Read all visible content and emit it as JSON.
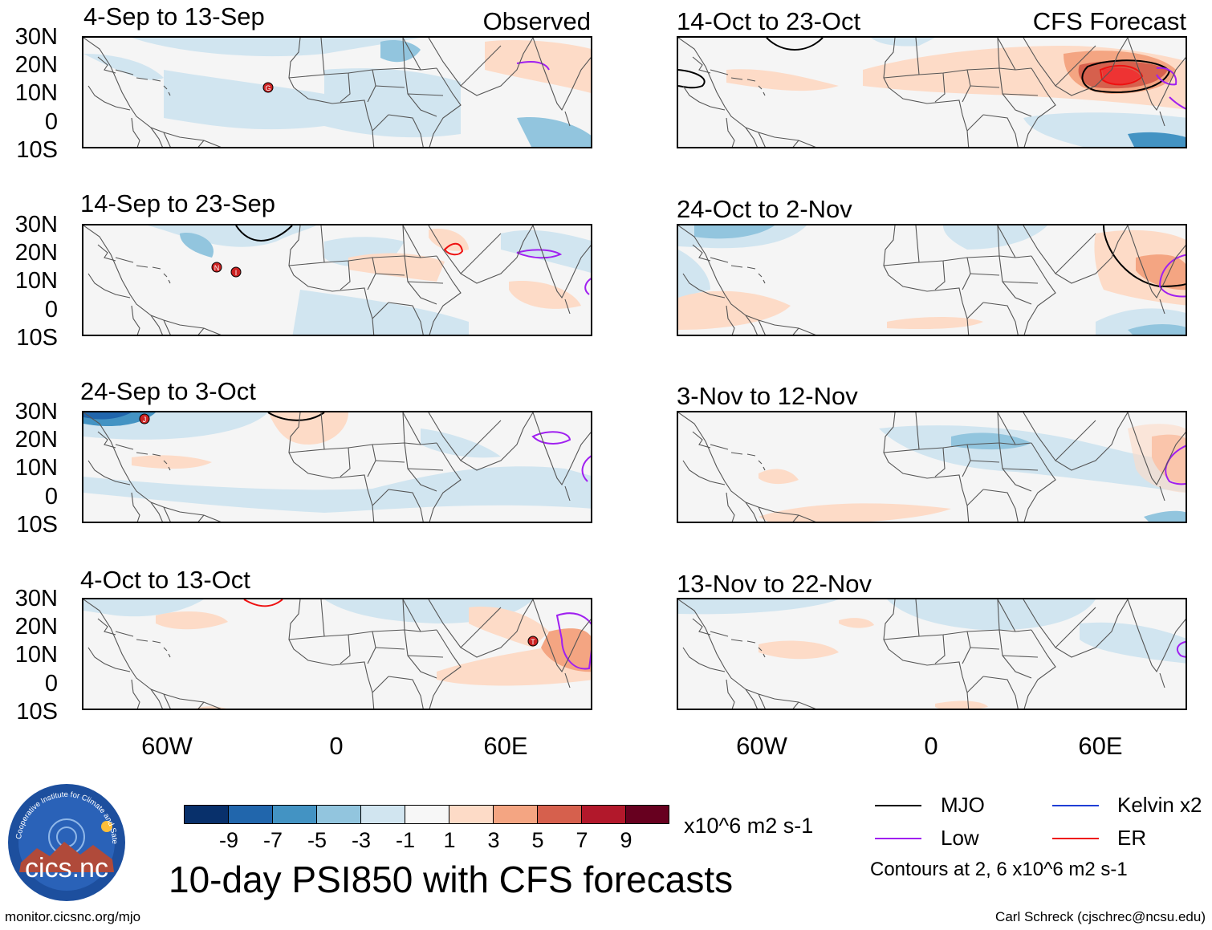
{
  "panels": {
    "obs": [
      {
        "title": "4-Sep to 13-Sep",
        "label": "Observed"
      },
      {
        "title": "14-Sep to 23-Sep",
        "label": ""
      },
      {
        "title": "24-Sep to 3-Oct",
        "label": ""
      },
      {
        "title": "4-Oct to 13-Oct",
        "label": ""
      }
    ],
    "fcst": [
      {
        "title": "14-Oct to 23-Oct",
        "label": "CFS Forecast"
      },
      {
        "title": "24-Oct to 2-Nov",
        "label": ""
      },
      {
        "title": "3-Nov to 12-Nov",
        "label": ""
      },
      {
        "title": "13-Nov to 22-Nov",
        "label": ""
      }
    ]
  },
  "axes": {
    "lat_labels": [
      "30N",
      "20N",
      "10N",
      "0",
      "10S"
    ],
    "lon_labels": [
      "60W",
      "0",
      "60E"
    ]
  },
  "storms": [
    "G",
    "N",
    "I",
    "J",
    "T"
  ],
  "colorbar": {
    "labels": [
      "-9",
      "-7",
      "-5",
      "-3",
      "-1",
      "1",
      "3",
      "5",
      "7",
      "9"
    ],
    "units": "x10^6 m2 s-1",
    "colors": [
      "#08306b",
      "#2166ac",
      "#4393c3",
      "#92c5de",
      "#d1e5f0",
      "#f7f7f7",
      "#fddbc7",
      "#f4a582",
      "#d6604d",
      "#b2182b",
      "#67001f"
    ]
  },
  "legend": {
    "mjo": "MJO",
    "low": "Low",
    "kelvin": "Kelvin x2",
    "er": "ER",
    "contours_note": "Contours at 2, 6 x10^6 m2 s-1",
    "colors": {
      "mjo": "#000000",
      "low": "#a020f0",
      "kelvin": "#1f3fd6",
      "er": "#ee1111"
    }
  },
  "title": "10-day PSI850 with CFS forecasts",
  "logo": {
    "text": "cics.nc",
    "ring_text": "Cooperative Institute for Climate and Satellites"
  },
  "footer": {
    "left": "monitor.cicsnc.org/mjo",
    "right": "Carl Schreck (cjschrec@ncsu.edu)"
  }
}
